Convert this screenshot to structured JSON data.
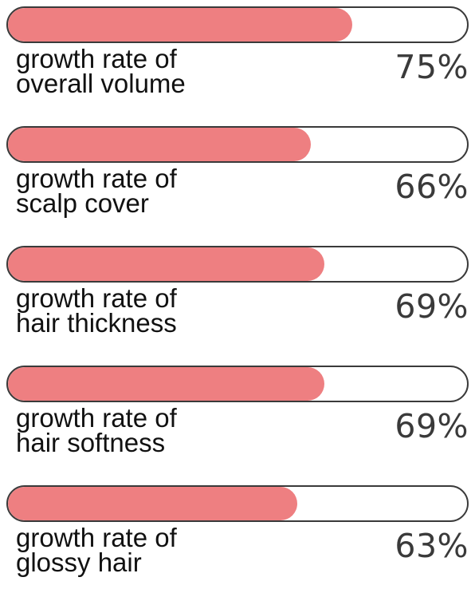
{
  "chart_data": {
    "type": "bar",
    "orientation": "horizontal",
    "unit": "%",
    "ylim": [
      0,
      100
    ],
    "bars": [
      {
        "label_line1": "growth rate of",
        "label_line2": "overall volume",
        "value": 75,
        "display": "75%"
      },
      {
        "label_line1": "growth rate of",
        "label_line2": "scalp cover",
        "value": 66,
        "display": "66%"
      },
      {
        "label_line1": "growth rate of",
        "label_line2": "hair thickness",
        "value": 69,
        "display": "69%"
      },
      {
        "label_line1": "growth rate of",
        "label_line2": "hair softness",
        "value": 69,
        "display": "69%"
      },
      {
        "label_line1": "growth rate of",
        "label_line2": "glossy hair",
        "value": 63,
        "display": "63%"
      }
    ]
  },
  "colors": {
    "fill": "#ee7f81",
    "track_border": "#3a3a3a",
    "track_bg": "#ffffff",
    "percent_text": "#3a3a3a",
    "label_text": "#111111"
  }
}
